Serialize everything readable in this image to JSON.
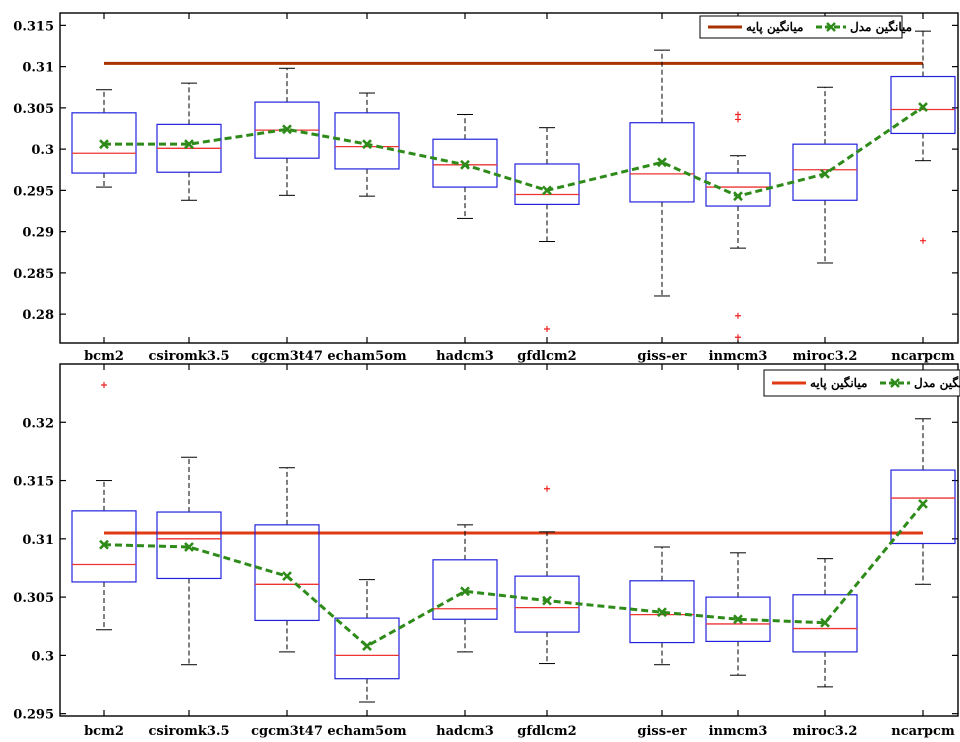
{
  "chart_data": [
    {
      "type": "box",
      "categories": [
        "bcm2",
        "csiromk3.5",
        "cgcm3t47",
        "echam5om",
        "hadcm3",
        "gfdlcm2",
        "giss-er",
        "inmcm3",
        "miroc3.2",
        "ncarpcm"
      ],
      "ylim": [
        0.2765,
        0.3165
      ],
      "yticks": [
        0.28,
        0.285,
        0.29,
        0.295,
        0.3,
        0.305,
        0.31,
        0.315
      ],
      "ytick_labels": [
        "0.28",
        "0.285",
        "0.29",
        "0.295",
        "0.3",
        "0.305",
        "0.31",
        "0.315"
      ],
      "boxes": [
        {
          "whisker_low": 0.2954,
          "q1": 0.2971,
          "median": 0.2995,
          "q3": 0.3044,
          "whisker_high": 0.3072,
          "outliers": []
        },
        {
          "whisker_low": 0.2938,
          "q1": 0.2972,
          "median": 0.3001,
          "q3": 0.303,
          "whisker_high": 0.308,
          "outliers": []
        },
        {
          "whisker_low": 0.2944,
          "q1": 0.2989,
          "median": 0.3023,
          "q3": 0.3057,
          "whisker_high": 0.3098,
          "outliers": []
        },
        {
          "whisker_low": 0.2943,
          "q1": 0.2976,
          "median": 0.3003,
          "q3": 0.3044,
          "whisker_high": 0.3068,
          "outliers": []
        },
        {
          "whisker_low": 0.2916,
          "q1": 0.2954,
          "median": 0.2981,
          "q3": 0.3012,
          "whisker_high": 0.3042,
          "outliers": []
        },
        {
          "whisker_low": 0.2888,
          "q1": 0.2933,
          "median": 0.2945,
          "q3": 0.2982,
          "whisker_high": 0.3026,
          "outliers": [
            0.2782
          ]
        },
        {
          "whisker_low": 0.2822,
          "q1": 0.2936,
          "median": 0.297,
          "q3": 0.3032,
          "whisker_high": 0.312,
          "outliers": []
        },
        {
          "whisker_low": 0.288,
          "q1": 0.2931,
          "median": 0.2954,
          "q3": 0.2971,
          "whisker_high": 0.2992,
          "outliers": [
            0.3036,
            0.3042,
            0.2798,
            0.2772
          ]
        },
        {
          "whisker_low": 0.2862,
          "q1": 0.2938,
          "median": 0.2975,
          "q3": 0.3006,
          "whisker_high": 0.3075,
          "outliers": []
        },
        {
          "whisker_low": 0.2986,
          "q1": 0.3019,
          "median": 0.3048,
          "q3": 0.3088,
          "whisker_high": 0.3143,
          "outliers": [
            0.2889
          ]
        }
      ],
      "model_mean": [
        0.3006,
        0.3006,
        0.3024,
        0.3006,
        0.2981,
        0.295,
        0.2984,
        0.2943,
        0.297,
        0.3051
      ],
      "base_mean": 0.3104,
      "legend": {
        "model_mean": "میانگین مدل",
        "base_mean": "میانگین پایه"
      },
      "base_line_color": "#a83200",
      "model_line_color": "#2e8b1a"
    },
    {
      "type": "box",
      "categories": [
        "bcm2",
        "csiromk3.5",
        "cgcm3t47",
        "echam5om",
        "hadcm3",
        "gfdlcm2",
        "giss-er",
        "inmcm3",
        "miroc3.2",
        "ncarpcm"
      ],
      "ylim": [
        0.2948,
        0.325
      ],
      "yticks": [
        0.295,
        0.3,
        0.305,
        0.31,
        0.315,
        0.32
      ],
      "ytick_labels": [
        "0.295",
        "0.3",
        "0.305",
        "0.31",
        "0.315",
        "0.32"
      ],
      "boxes": [
        {
          "whisker_low": 0.3022,
          "q1": 0.3063,
          "median": 0.3078,
          "q3": 0.3124,
          "whisker_high": 0.315,
          "outliers": [
            0.3232
          ]
        },
        {
          "whisker_low": 0.2992,
          "q1": 0.3066,
          "median": 0.31,
          "q3": 0.3123,
          "whisker_high": 0.317,
          "outliers": []
        },
        {
          "whisker_low": 0.3003,
          "q1": 0.303,
          "median": 0.3061,
          "q3": 0.3112,
          "whisker_high": 0.3161,
          "outliers": []
        },
        {
          "whisker_low": 0.296,
          "q1": 0.298,
          "median": 0.3,
          "q3": 0.3032,
          "whisker_high": 0.3065,
          "outliers": []
        },
        {
          "whisker_low": 0.3003,
          "q1": 0.3031,
          "median": 0.304,
          "q3": 0.3082,
          "whisker_high": 0.3112,
          "outliers": []
        },
        {
          "whisker_low": 0.2993,
          "q1": 0.302,
          "median": 0.3041,
          "q3": 0.3068,
          "whisker_high": 0.3106,
          "outliers": [
            0.3143
          ]
        },
        {
          "whisker_low": 0.2992,
          "q1": 0.3011,
          "median": 0.3035,
          "q3": 0.3064,
          "whisker_high": 0.3093,
          "outliers": []
        },
        {
          "whisker_low": 0.2983,
          "q1": 0.3012,
          "median": 0.3027,
          "q3": 0.305,
          "whisker_high": 0.3088,
          "outliers": []
        },
        {
          "whisker_low": 0.2973,
          "q1": 0.3003,
          "median": 0.3023,
          "q3": 0.3052,
          "whisker_high": 0.3083,
          "outliers": []
        },
        {
          "whisker_low": 0.3061,
          "q1": 0.3096,
          "median": 0.3135,
          "q3": 0.3159,
          "whisker_high": 0.3203,
          "outliers": []
        }
      ],
      "model_mean": [
        0.3095,
        0.3093,
        0.3068,
        0.3008,
        0.3055,
        0.3047,
        0.3037,
        0.3031,
        0.3028,
        0.313
      ],
      "base_mean": 0.3105,
      "legend": {
        "model_mean": "میانگین مدل",
        "base_mean": "میانگین پایه"
      },
      "base_line_color": "#e03a14",
      "model_line_color": "#2e8b1a"
    }
  ],
  "colors": {
    "box": "#2222dd",
    "median": "#ee3333",
    "whisker": "#000000",
    "outlier": "#ee2222"
  }
}
